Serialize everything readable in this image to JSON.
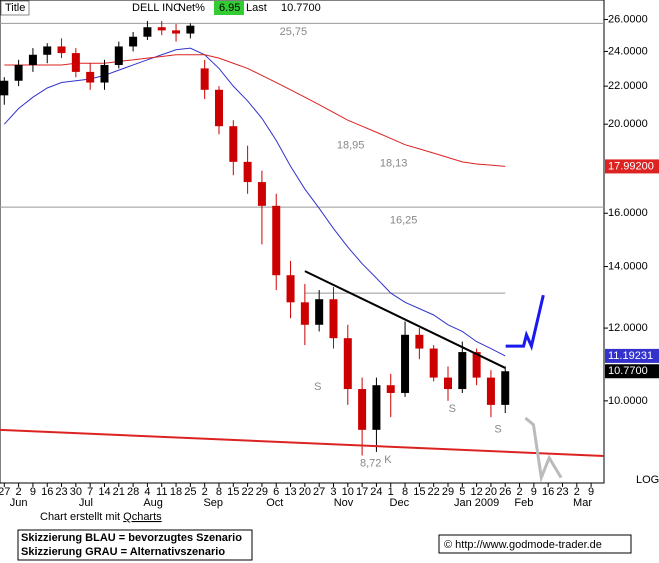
{
  "header": {
    "title_box": "Title",
    "symbol": "DELL INC",
    "net_label": "Net%",
    "net_value": "6.95",
    "last_label": "Last",
    "last_value": "10.7700"
  },
  "chart_data": {
    "type": "candlestick",
    "log_scale": true,
    "xlim": [
      -0.3,
      41.9
    ],
    "ylim": [
      8.14,
      27.3
    ],
    "yticks": [
      {
        "value": 10,
        "label": "10.0000"
      },
      {
        "value": 12,
        "label": "12.0000"
      },
      {
        "value": 14,
        "label": "14.0000"
      },
      {
        "value": 16,
        "label": "16.0000"
      },
      {
        "value": 20,
        "label": "20.0000"
      },
      {
        "value": 22,
        "label": "22.0000"
      },
      {
        "value": 24,
        "label": "24.0000"
      },
      {
        "value": 26,
        "label": "26.0000"
      }
    ],
    "xticks": [
      {
        "value": 0,
        "label": "27"
      },
      {
        "value": 1,
        "label": "2"
      },
      {
        "value": 2,
        "label": "9"
      },
      {
        "value": 3,
        "label": "16"
      },
      {
        "value": 4,
        "label": "23"
      },
      {
        "value": 5,
        "label": "30"
      },
      {
        "value": 6,
        "label": "7"
      },
      {
        "value": 7,
        "label": "14"
      },
      {
        "value": 8,
        "label": "21"
      },
      {
        "value": 9,
        "label": "28"
      },
      {
        "value": 10,
        "label": "4"
      },
      {
        "value": 11,
        "label": "11"
      },
      {
        "value": 12,
        "label": "18"
      },
      {
        "value": 13,
        "label": "25"
      },
      {
        "value": 14,
        "label": "2"
      },
      {
        "value": 15,
        "label": "8"
      },
      {
        "value": 16,
        "label": "15"
      },
      {
        "value": 17,
        "label": "22"
      },
      {
        "value": 18,
        "label": "29"
      },
      {
        "value": 19,
        "label": "6"
      },
      {
        "value": 20,
        "label": "13"
      },
      {
        "value": 21,
        "label": "20"
      },
      {
        "value": 22,
        "label": "27"
      },
      {
        "value": 23,
        "label": "3"
      },
      {
        "value": 24,
        "label": "10"
      },
      {
        "value": 25,
        "label": "17"
      },
      {
        "value": 26,
        "label": "24"
      },
      {
        "value": 27,
        "label": "1"
      },
      {
        "value": 28,
        "label": "8"
      },
      {
        "value": 29,
        "label": "15"
      },
      {
        "value": 30,
        "label": "22"
      },
      {
        "value": 31,
        "label": "29"
      },
      {
        "value": 32,
        "label": "5"
      },
      {
        "value": 33,
        "label": "12"
      },
      {
        "value": 34,
        "label": "20"
      },
      {
        "value": 35,
        "label": "26"
      },
      {
        "value": 36,
        "label": "2"
      },
      {
        "value": 37,
        "label": "9"
      },
      {
        "value": 38,
        "label": "16"
      },
      {
        "value": 39,
        "label": "23"
      },
      {
        "value": 40,
        "label": "2"
      },
      {
        "value": 41,
        "label": "9"
      }
    ],
    "month_ticks": [
      {
        "value": 1,
        "label": "Jun"
      },
      {
        "value": 5.7,
        "label": "Jul"
      },
      {
        "value": 10.4,
        "label": "Aug"
      },
      {
        "value": 14.6,
        "label": "Sep"
      },
      {
        "value": 18.9,
        "label": "Oct"
      },
      {
        "value": 23.7,
        "label": "Nov"
      },
      {
        "value": 27.6,
        "label": "Dec"
      },
      {
        "value": 33,
        "label": "Jan 2009"
      },
      {
        "value": 36.3,
        "label": "Feb"
      },
      {
        "value": 40.4,
        "label": "Mar"
      }
    ],
    "x": [
      0,
      1,
      2,
      3,
      4,
      5,
      6,
      7,
      8,
      9,
      10,
      11,
      12,
      13,
      14,
      15,
      16,
      17,
      18,
      19,
      20,
      21,
      22,
      23,
      24,
      25,
      26,
      27,
      28,
      29,
      30,
      31,
      32,
      33,
      34,
      35
    ],
    "open": [
      21.5,
      22.3,
      23.2,
      23.8,
      24.3,
      23.9,
      22.8,
      22.2,
      23.2,
      24.3,
      24.9,
      25.5,
      25.3,
      25.1,
      23,
      21.8,
      19.9,
      18.2,
      17.3,
      16.3,
      13.7,
      12.8,
      12.1,
      12.9,
      11.7,
      10.3,
      9.3,
      10.4,
      10.2,
      11.8,
      11.4,
      10.6,
      10.3,
      11.3,
      10.6,
      9.9
    ],
    "high": [
      22.5,
      23.5,
      24.2,
      24.5,
      24.8,
      24.2,
      23.3,
      23.5,
      24.6,
      25.2,
      25.9,
      25.9,
      25.7,
      25.75,
      23.5,
      22,
      20.2,
      18.95,
      17.8,
      16.8,
      14.2,
      13.4,
      13.2,
      13.3,
      12.1,
      10.6,
      10.6,
      10.7,
      12.2,
      12,
      11.5,
      10.9,
      11.6,
      11.4,
      10.8,
      10.9
    ],
    "low": [
      21,
      22,
      22.8,
      23.3,
      23.6,
      22.5,
      21.8,
      21.8,
      23,
      24,
      24.7,
      25,
      24.6,
      24.8,
      21.3,
      19.5,
      17.6,
      16.8,
      14.8,
      13.2,
      12.3,
      11.5,
      11.9,
      11.4,
      9.9,
      8.72,
      8.8,
      9.6,
      10.1,
      11.1,
      10.5,
      10,
      10.2,
      10.4,
      9.6,
      9.7
    ],
    "close": [
      22.3,
      23.2,
      23.8,
      24.3,
      23.9,
      22.8,
      22.2,
      23.2,
      24.3,
      24.9,
      25.5,
      25.3,
      25.1,
      25.6,
      21.8,
      19.9,
      18.2,
      17.3,
      16.3,
      13.7,
      12.8,
      12.1,
      12.9,
      11.7,
      10.3,
      9.3,
      10.4,
      10.2,
      11.8,
      11.4,
      10.6,
      10.3,
      11.3,
      10.6,
      9.9,
      10.77
    ],
    "up_color": "#000000",
    "down_color": "#cc0000",
    "series": [
      {
        "color": "#3333cc",
        "values": [
          20,
          20.8,
          21.4,
          21.9,
          22.2,
          22.3,
          22.4,
          22.6,
          22.9,
          23.2,
          23.5,
          23.8,
          24.1,
          24.2,
          23.8,
          23,
          22,
          21.2,
          20.3,
          19.2,
          18,
          17,
          16.2,
          15.4,
          14.7,
          14.1,
          13.6,
          13.1,
          12.8,
          12.6,
          12.4,
          12.1,
          11.9,
          11.6,
          11.4,
          11.19231
        ]
      },
      {
        "color": "#dd2222",
        "values": [
          23.2,
          23.2,
          23.2,
          23.2,
          23.2,
          23.3,
          23.3,
          23.3,
          23.4,
          23.5,
          23.6,
          23.7,
          23.8,
          23.8,
          23.8,
          23.6,
          23.3,
          23,
          22.6,
          22.2,
          21.8,
          21.4,
          21,
          20.6,
          20.2,
          19.9,
          19.6,
          19.3,
          19,
          18.8,
          18.6,
          18.4,
          18.2,
          18.1,
          18.05,
          17.992
        ]
      }
    ],
    "last_values": [
      {
        "value": 17.992,
        "label": "17.99200",
        "color": "#dd2222"
      },
      {
        "value": 11.19231,
        "label": "11.19231",
        "color": "#3333cc"
      },
      {
        "value": 10.77,
        "label": "10.7700",
        "color": "#000000"
      }
    ],
    "hlines": [
      {
        "value": 25.75,
        "from": -0.3,
        "to": 41.9
      },
      {
        "value": 16.25,
        "from": -0.3,
        "to": 41.9
      },
      {
        "value": 13.1,
        "from": 21,
        "to": 35
      }
    ],
    "trendlines": [
      {
        "color": "#000000",
        "x": [
          21,
          35
        ],
        "y": [
          13.84,
          10.86
        ]
      },
      {
        "color": "#dd2222",
        "x": [
          -0.3,
          41.9
        ],
        "y": [
          9.3,
          8.71
        ]
      }
    ],
    "scenarios": [
      {
        "color": "#1a1aee",
        "x": [
          35.03,
          36.28,
          36.48,
          36.83,
          37.66
        ],
        "y": [
          11.47,
          11.47,
          11.8,
          11.47,
          13.03
        ]
      },
      {
        "color": "#bbbbbb",
        "x": [
          36.41,
          36.97,
          37.52,
          38.07,
          38.9
        ],
        "y": [
          9.58,
          9.42,
          8.25,
          8.67,
          8.25
        ]
      }
    ],
    "annotations": [
      {
        "text": "25,75",
        "x": 20.2,
        "y": 25.2
      },
      {
        "text": "18,95",
        "x": 24.2,
        "y": 18.95
      },
      {
        "text": "18,13",
        "x": 27.2,
        "y": 18.13
      },
      {
        "text": "16,25",
        "x": 27.9,
        "y": 15.7
      },
      {
        "text": "8,72",
        "x": 25.6,
        "y": 8.55
      },
      {
        "text": "K",
        "x": 26.8,
        "y": 8.62
      },
      {
        "text": "S",
        "x": 21.9,
        "y": 10.35
      },
      {
        "text": "S",
        "x": 31.3,
        "y": 9.8
      },
      {
        "text": "S",
        "x": 34.5,
        "y": 9.3
      }
    ],
    "scale_label": "LOG"
  },
  "footer": {
    "credit": "Chart erstellt mit ",
    "credit_link": "Qcharts",
    "legend_blue": "Skizzierung BLAU = bevorzugtes Szenario",
    "legend_gray": "Skizzierung GRAU = Alternativszenario",
    "source": "© http://www.godmode-trader.de"
  }
}
